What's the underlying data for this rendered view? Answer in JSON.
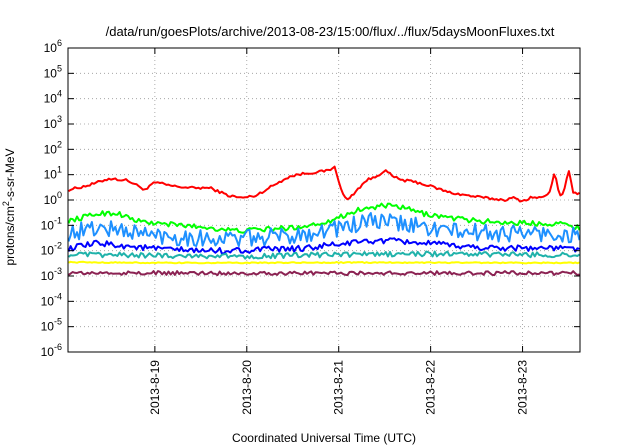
{
  "chart_data": {
    "type": "line",
    "title": "/data/run/goesPlots/archive/2013-08-23/15:00/flux/../flux/5daysMoonFluxes.txt",
    "xlabel": "Coordinated Universal Time (UTC)",
    "ylabel": "protons/cm2-s-sr-MeV",
    "ylabel_parts": {
      "before": "protons/cm",
      "sup": "2",
      "after": "-s-sr-MeV"
    },
    "yscale": "log",
    "ylim": [
      1e-06,
      1000000.0
    ],
    "xlim": [
      -0.945,
      4.625
    ],
    "grid": true,
    "x_ticks": [
      {
        "pos": 0,
        "label": "2013-8-19"
      },
      {
        "pos": 1,
        "label": "2013-8-20"
      },
      {
        "pos": 2,
        "label": "2013-8-21"
      },
      {
        "pos": 3,
        "label": "2013-8-22"
      },
      {
        "pos": 4,
        "label": "2013-8-23"
      }
    ],
    "y_ticks": [
      {
        "exp": -6,
        "base": "10",
        "sup": "-6"
      },
      {
        "exp": -5,
        "base": "10",
        "sup": "-5"
      },
      {
        "exp": -4,
        "base": "10",
        "sup": "-4"
      },
      {
        "exp": -3,
        "base": "10",
        "sup": "-3"
      },
      {
        "exp": -2,
        "base": "10",
        "sup": "-2"
      },
      {
        "exp": -1,
        "base": "10",
        "sup": "-1"
      },
      {
        "exp": 0,
        "base": "10",
        "sup": "0"
      },
      {
        "exp": 1,
        "base": "10",
        "sup": "1"
      },
      {
        "exp": 2,
        "base": "10",
        "sup": "2"
      },
      {
        "exp": 3,
        "base": "10",
        "sup": "3"
      },
      {
        "exp": 4,
        "base": "10",
        "sup": "4"
      },
      {
        "exp": 5,
        "base": "10",
        "sup": "5"
      },
      {
        "exp": 6,
        "base": "10",
        "sup": "6"
      }
    ],
    "series": [
      {
        "color": "#ff0000",
        "noise": 0.05,
        "x": [
          -0.94,
          -0.7,
          -0.5,
          -0.3,
          -0.1,
          0.0,
          0.2,
          0.4,
          0.6,
          0.8,
          0.95,
          1.1,
          1.3,
          1.45,
          1.55,
          1.7,
          1.8,
          1.9,
          1.95,
          2.0,
          2.05,
          2.1,
          2.2,
          2.3,
          2.4,
          2.5,
          2.6,
          2.7,
          2.85,
          3.0,
          3.2,
          3.4,
          3.6,
          3.8,
          3.9,
          4.0,
          4.1,
          4.2,
          4.3,
          4.35,
          4.4,
          4.45,
          4.5,
          4.55,
          4.62
        ],
        "y": [
          2.5,
          4,
          7,
          6,
          2.5,
          5,
          3.5,
          3,
          3,
          1.5,
          1.2,
          1.5,
          4,
          8,
          10,
          12,
          13,
          15,
          22,
          6,
          1.5,
          1,
          2.5,
          6,
          8,
          15,
          8,
          6,
          5,
          3.5,
          2,
          1.5,
          1.2,
          1,
          1.2,
          0.9,
          1.3,
          1.2,
          2,
          15,
          1.5,
          2,
          15,
          2,
          1.8
        ]
      },
      {
        "color": "#00ff00",
        "noise": 0.1,
        "x": [
          -0.94,
          -0.6,
          -0.4,
          -0.2,
          0.0,
          0.3,
          0.6,
          0.9,
          1.2,
          1.5,
          1.8,
          2.0,
          2.2,
          2.5,
          2.7,
          2.9,
          3.2,
          3.5,
          3.8,
          4.1,
          4.4,
          4.62
        ],
        "y": [
          0.15,
          0.3,
          0.3,
          0.15,
          0.12,
          0.1,
          0.08,
          0.06,
          0.07,
          0.08,
          0.12,
          0.2,
          0.4,
          0.6,
          0.5,
          0.3,
          0.2,
          0.15,
          0.13,
          0.12,
          0.12,
          0.08
        ]
      },
      {
        "color": "#1e90ff",
        "noise": 0.35,
        "x": [
          -0.94,
          -0.6,
          -0.3,
          0.0,
          0.3,
          0.6,
          1.0,
          1.5,
          2.0,
          2.4,
          2.8,
          3.2,
          3.6,
          4.0,
          4.62
        ],
        "y": [
          0.05,
          0.08,
          0.06,
          0.04,
          0.035,
          0.03,
          0.03,
          0.04,
          0.08,
          0.15,
          0.1,
          0.06,
          0.05,
          0.05,
          0.04
        ]
      },
      {
        "color": "#0000ff",
        "noise": 0.12,
        "x": [
          -0.94,
          -0.6,
          -0.3,
          0.0,
          0.4,
          0.8,
          1.2,
          1.6,
          2.0,
          2.4,
          2.8,
          3.2,
          3.6,
          4.0,
          4.62
        ],
        "y": [
          0.012,
          0.02,
          0.015,
          0.012,
          0.01,
          0.01,
          0.011,
          0.012,
          0.018,
          0.025,
          0.022,
          0.016,
          0.013,
          0.013,
          0.012
        ]
      },
      {
        "color": "#20b2aa",
        "noise": 0.1,
        "x": [
          -0.94,
          0.0,
          1.0,
          2.0,
          3.0,
          4.0,
          4.62
        ],
        "y": [
          0.007,
          0.0065,
          0.006,
          0.007,
          0.0075,
          0.007,
          0.0065
        ]
      },
      {
        "color": "#ffff00",
        "noise": 0.02,
        "x": [
          -0.94,
          0.0,
          1.0,
          2.0,
          3.0,
          4.0,
          4.62
        ],
        "y": [
          0.0035,
          0.0033,
          0.0033,
          0.0034,
          0.0034,
          0.0033,
          0.0033
        ]
      },
      {
        "color": "#8b2252",
        "noise": 0.08,
        "x": [
          -0.94,
          0.0,
          1.0,
          2.0,
          3.0,
          4.0,
          4.62
        ],
        "y": [
          0.0013,
          0.0013,
          0.0013,
          0.0013,
          0.0013,
          0.0013,
          0.0013
        ]
      }
    ]
  }
}
